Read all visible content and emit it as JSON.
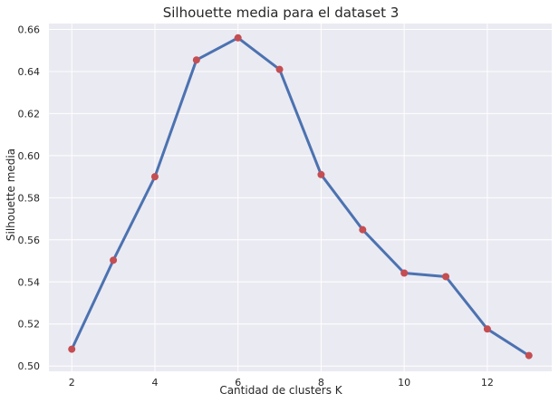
{
  "chart_data": {
    "type": "line",
    "title": "Silhouette media para el dataset 3",
    "xlabel": "Cantidad de clusters K",
    "ylabel": "Silhouette media",
    "x": [
      2,
      3,
      4,
      5,
      6,
      7,
      8,
      9,
      10,
      11,
      12,
      13
    ],
    "series": [
      {
        "values": [
          0.508,
          0.5503,
          0.59,
          0.6455,
          0.656,
          0.641,
          0.591,
          0.5648,
          0.5442,
          0.5425,
          0.5176,
          0.505
        ],
        "line_color": "#4c72b0",
        "marker_color": "#c44e52"
      }
    ],
    "xlim": [
      1.45,
      13.55
    ],
    "ylim": [
      0.4975,
      0.6628
    ],
    "xticks": [
      2,
      4,
      6,
      8,
      10,
      12
    ],
    "yticks": [
      0.5,
      0.52,
      0.54,
      0.56,
      0.58,
      0.6,
      0.62,
      0.64,
      0.66
    ],
    "ytick_labels": [
      "0.50",
      "0.52",
      "0.54",
      "0.56",
      "0.58",
      "0.60",
      "0.62",
      "0.64",
      "0.66"
    ],
    "grid": true,
    "style": {
      "plot_background": "#eaeaf2",
      "grid_color": "#ffffff",
      "text_color": "#262626"
    }
  }
}
